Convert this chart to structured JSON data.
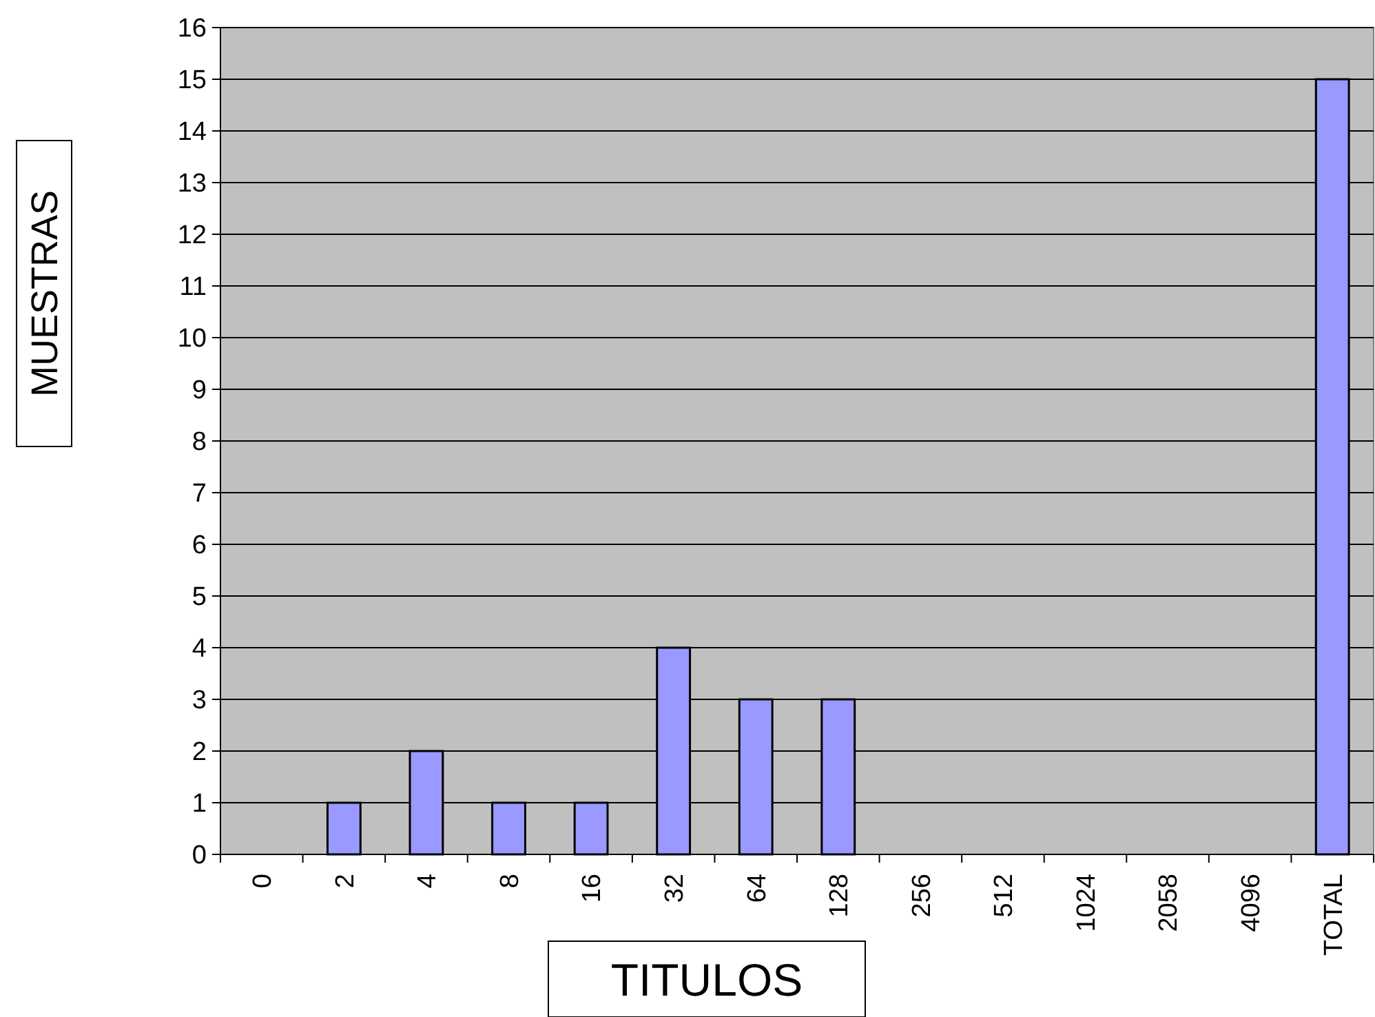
{
  "chart_data": {
    "type": "bar",
    "xlabel": "TITULOS",
    "ylabel": "MUESTRAS",
    "categories": [
      "0",
      "2",
      "4",
      "8",
      "16",
      "32",
      "64",
      "128",
      "256",
      "512",
      "1024",
      "2058",
      "4096",
      "TOTAL"
    ],
    "values": [
      0,
      1,
      2,
      1,
      1,
      4,
      3,
      3,
      0,
      0,
      0,
      0,
      0,
      15
    ],
    "color": "#9999ff",
    "ylim": [
      0,
      16
    ],
    "yticks": [
      0,
      1,
      2,
      3,
      4,
      5,
      6,
      7,
      8,
      9,
      10,
      11,
      12,
      13,
      14,
      15,
      16
    ],
    "grid": "y"
  }
}
